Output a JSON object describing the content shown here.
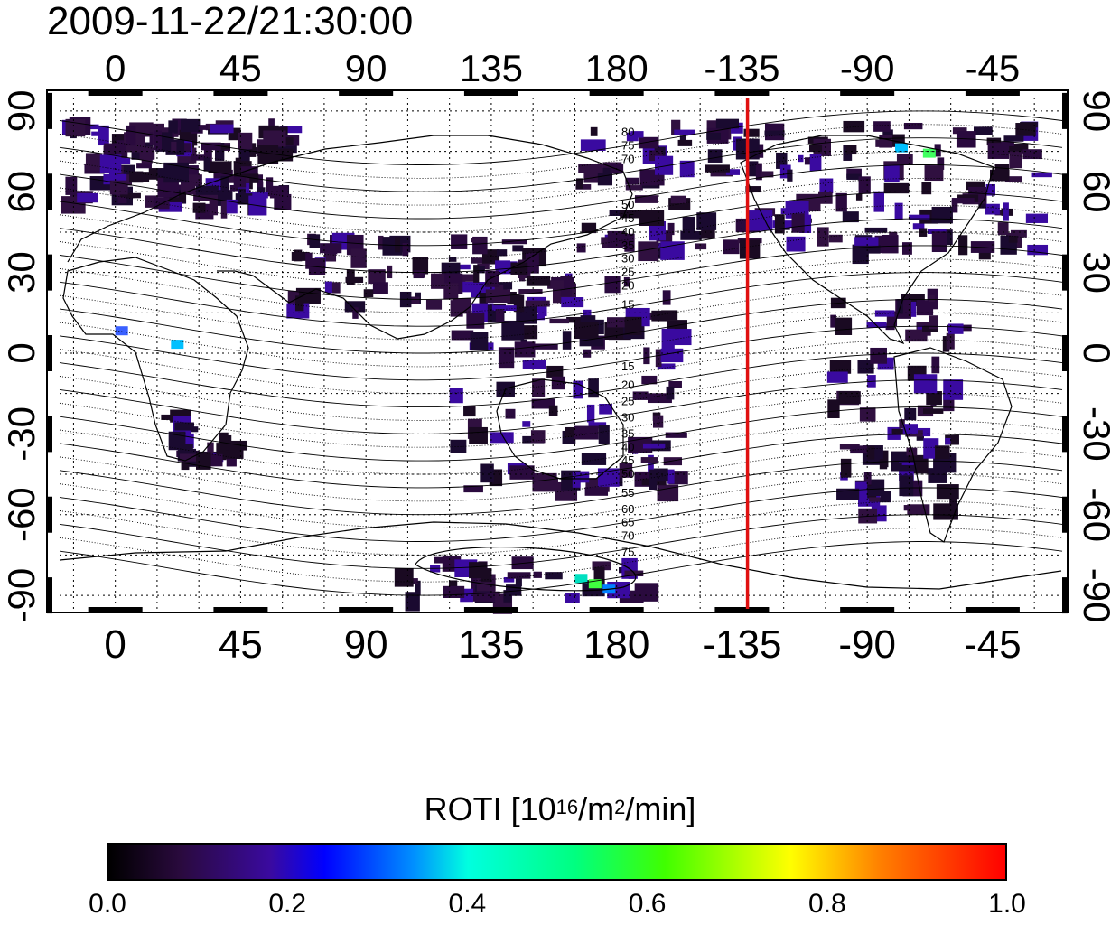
{
  "title": "2009-11-22/21:30:00",
  "map": {
    "bottom_lon_labels": [
      "0",
      "45",
      "90",
      "135",
      "180",
      "-135",
      "-90",
      "-45"
    ],
    "top_lon_labels": [
      "0",
      "45",
      "90",
      "135",
      "180",
      "-135",
      "-90",
      "-45"
    ],
    "left_lat_labels": [
      "90",
      "60",
      "30",
      "0",
      "-30",
      "-60",
      "-90"
    ],
    "right_lat_labels": [
      "90",
      "60",
      "30",
      "0",
      "-30",
      "-60",
      "-90"
    ],
    "lon_ticks_deg": [
      0,
      45,
      90,
      135,
      180,
      225,
      270,
      315
    ],
    "lat_ticks_deg": [
      90,
      60,
      30,
      0,
      -30,
      -60,
      -90
    ],
    "lon_range": [
      -20,
      340
    ],
    "lat_range": [
      -95,
      95
    ],
    "grid": true,
    "highlight_meridian_lon": -133,
    "highlight_meridian_color": "#e01010",
    "contour_labels_north": [
      "80",
      "75",
      "70",
      "50",
      "45",
      "40",
      "35",
      "30",
      "25",
      "20",
      "15"
    ],
    "contour_labels_south": [
      "15",
      "20",
      "25",
      "30",
      "35",
      "40",
      "45",
      "50",
      "55",
      "60",
      "65",
      "70",
      "75"
    ]
  },
  "colorbar": {
    "title_main": "ROTI  [10",
    "title_sup1": "16",
    "title_mid": "/m",
    "title_sup2": "2",
    "title_end": "/min]",
    "ticks": [
      "0.0",
      "0.2",
      "0.4",
      "0.6",
      "0.8",
      "1.0"
    ],
    "range": [
      0.0,
      1.0
    ],
    "colors": [
      "#000000",
      "#2a0a3e",
      "#3a0aa0",
      "#0000ff",
      "#00ffe0",
      "#40ff00",
      "#ffff00",
      "#ff0000"
    ]
  }
}
